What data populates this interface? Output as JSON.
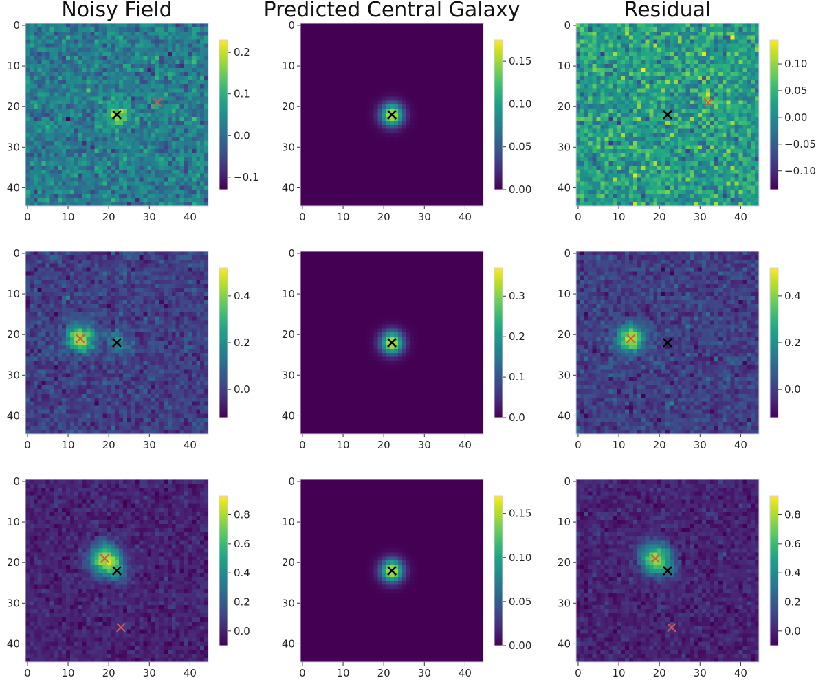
{
  "columns": [
    "Noisy Field",
    "Predicted Central Galaxy",
    "Residual"
  ],
  "colors": {
    "viridis_low": "#440154",
    "viridis_high": "#fde725",
    "marker_central": "#000000",
    "marker_neighbor": "#d9534f"
  },
  "chart_data": [
    {
      "type": "heatmap",
      "row": 0,
      "col": 0,
      "title": "Noisy Field",
      "image_size": 45,
      "x_ticks": [
        "0",
        "10",
        "20",
        "30",
        "40"
      ],
      "y_ticks": [
        "0",
        "10",
        "20",
        "30",
        "40"
      ],
      "vmin": -0.13,
      "vmax": 0.23,
      "cbar_ticks": [
        {
          "v": -0.1,
          "label": "−0.1"
        },
        {
          "v": 0.0,
          "label": "0.0"
        },
        {
          "v": 0.1,
          "label": "0.1"
        },
        {
          "v": 0.2,
          "label": "0.2"
        }
      ],
      "noise_mean": 0.02,
      "noise_sigma": 0.035,
      "sources": [
        {
          "x": 22,
          "y": 22,
          "amp": 0.18,
          "sigma": 1.8
        },
        {
          "x": 32,
          "y": 19,
          "amp": 0.06,
          "sigma": 1.8
        }
      ],
      "markers": [
        {
          "x": 22,
          "y": 22,
          "color": "black"
        },
        {
          "x": 32,
          "y": 19,
          "color": "red"
        }
      ]
    },
    {
      "type": "heatmap",
      "row": 0,
      "col": 1,
      "title": "Predicted Central Galaxy",
      "image_size": 45,
      "x_ticks": [
        "0",
        "10",
        "20",
        "30",
        "40"
      ],
      "y_ticks": [
        "0",
        "10",
        "20",
        "30",
        "40"
      ],
      "vmin": 0.0,
      "vmax": 0.175,
      "cbar_ticks": [
        {
          "v": 0.0,
          "label": "0.00"
        },
        {
          "v": 0.05,
          "label": "0.05"
        },
        {
          "v": 0.1,
          "label": "0.10"
        },
        {
          "v": 0.15,
          "label": "0.15"
        }
      ],
      "noise_mean": 0.0,
      "noise_sigma": 0.0,
      "sources": [
        {
          "x": 22,
          "y": 22,
          "amp": 0.17,
          "sigma": 1.9
        }
      ],
      "markers": [
        {
          "x": 22,
          "y": 22,
          "color": "black"
        }
      ]
    },
    {
      "type": "heatmap",
      "row": 0,
      "col": 2,
      "title": "Residual",
      "image_size": 45,
      "x_ticks": [
        "0",
        "10",
        "20",
        "30",
        "40"
      ],
      "y_ticks": [
        "0",
        "10",
        "20",
        "30",
        "40"
      ],
      "vmin": -0.135,
      "vmax": 0.145,
      "cbar_ticks": [
        {
          "v": -0.1,
          "label": "−0.10"
        },
        {
          "v": -0.05,
          "label": "−0.05"
        },
        {
          "v": 0.0,
          "label": "0.00"
        },
        {
          "v": 0.05,
          "label": "0.05"
        },
        {
          "v": 0.1,
          "label": "0.10"
        }
      ],
      "noise_mean": 0.02,
      "noise_sigma": 0.035,
      "sources": [
        {
          "x": 32,
          "y": 19,
          "amp": 0.06,
          "sigma": 1.6
        }
      ],
      "markers": [
        {
          "x": 22,
          "y": 22,
          "color": "black"
        },
        {
          "x": 32,
          "y": 19,
          "color": "red"
        }
      ]
    },
    {
      "type": "heatmap",
      "row": 1,
      "col": 0,
      "title": "",
      "image_size": 45,
      "x_ticks": [
        "0",
        "10",
        "20",
        "30",
        "40"
      ],
      "y_ticks": [
        "0",
        "10",
        "20",
        "30",
        "40"
      ],
      "vmin": -0.12,
      "vmax": 0.52,
      "cbar_ticks": [
        {
          "v": 0.0,
          "label": "0.0"
        },
        {
          "v": 0.2,
          "label": "0.2"
        },
        {
          "v": 0.4,
          "label": "0.4"
        }
      ],
      "noise_mean": 0.0,
      "noise_sigma": 0.04,
      "sources": [
        {
          "x": 13,
          "y": 21,
          "amp": 0.45,
          "sigma": 2.3
        },
        {
          "x": 22,
          "y": 22,
          "amp": 0.2,
          "sigma": 1.9
        }
      ],
      "markers": [
        {
          "x": 13,
          "y": 21,
          "color": "red"
        },
        {
          "x": 22,
          "y": 22,
          "color": "black"
        }
      ]
    },
    {
      "type": "heatmap",
      "row": 1,
      "col": 1,
      "title": "",
      "image_size": 45,
      "x_ticks": [
        "0",
        "10",
        "20",
        "30",
        "40"
      ],
      "y_ticks": [
        "0",
        "10",
        "20",
        "30",
        "40"
      ],
      "vmin": 0.0,
      "vmax": 0.37,
      "cbar_ticks": [
        {
          "v": 0.0,
          "label": "0.0"
        },
        {
          "v": 0.1,
          "label": "0.1"
        },
        {
          "v": 0.2,
          "label": "0.2"
        },
        {
          "v": 0.3,
          "label": "0.3"
        }
      ],
      "noise_mean": 0.0,
      "noise_sigma": 0.0,
      "sources": [
        {
          "x": 22,
          "y": 22,
          "amp": 0.36,
          "sigma": 1.9
        }
      ],
      "markers": [
        {
          "x": 22,
          "y": 22,
          "color": "black"
        }
      ]
    },
    {
      "type": "heatmap",
      "row": 1,
      "col": 2,
      "title": "",
      "image_size": 45,
      "x_ticks": [
        "0",
        "10",
        "20",
        "30",
        "40"
      ],
      "y_ticks": [
        "0",
        "10",
        "20",
        "30",
        "40"
      ],
      "vmin": -0.12,
      "vmax": 0.52,
      "cbar_ticks": [
        {
          "v": 0.0,
          "label": "0.0"
        },
        {
          "v": 0.2,
          "label": "0.2"
        },
        {
          "v": 0.4,
          "label": "0.4"
        }
      ],
      "noise_mean": 0.0,
      "noise_sigma": 0.04,
      "sources": [
        {
          "x": 13,
          "y": 21,
          "amp": 0.45,
          "sigma": 2.3
        }
      ],
      "markers": [
        {
          "x": 13,
          "y": 21,
          "color": "red"
        },
        {
          "x": 22,
          "y": 22,
          "color": "black"
        }
      ]
    },
    {
      "type": "heatmap",
      "row": 2,
      "col": 0,
      "title": "",
      "image_size": 45,
      "x_ticks": [
        "0",
        "10",
        "20",
        "30",
        "40"
      ],
      "y_ticks": [
        "0",
        "10",
        "20",
        "30",
        "40"
      ],
      "vmin": -0.1,
      "vmax": 0.93,
      "cbar_ticks": [
        {
          "v": 0.0,
          "label": "0.0"
        },
        {
          "v": 0.2,
          "label": "0.2"
        },
        {
          "v": 0.4,
          "label": "0.4"
        },
        {
          "v": 0.6,
          "label": "0.6"
        },
        {
          "v": 0.8,
          "label": "0.8"
        }
      ],
      "noise_mean": 0.0,
      "noise_sigma": 0.045,
      "sources": [
        {
          "x": 19,
          "y": 19,
          "amp": 0.8,
          "sigma": 2.6
        },
        {
          "x": 22,
          "y": 22,
          "amp": 0.3,
          "sigma": 2.0
        },
        {
          "x": 23,
          "y": 36,
          "amp": 0.05,
          "sigma": 1.5
        }
      ],
      "markers": [
        {
          "x": 19,
          "y": 19,
          "color": "red"
        },
        {
          "x": 22,
          "y": 22,
          "color": "black"
        },
        {
          "x": 23,
          "y": 36,
          "color": "red"
        }
      ]
    },
    {
      "type": "heatmap",
      "row": 2,
      "col": 1,
      "title": "",
      "image_size": 45,
      "x_ticks": [
        "0",
        "10",
        "20",
        "30",
        "40"
      ],
      "y_ticks": [
        "0",
        "10",
        "20",
        "30",
        "40"
      ],
      "vmin": 0.0,
      "vmax": 0.17,
      "cbar_ticks": [
        {
          "v": 0.0,
          "label": "0.00"
        },
        {
          "v": 0.05,
          "label": "0.05"
        },
        {
          "v": 0.1,
          "label": "0.10"
        },
        {
          "v": 0.15,
          "label": "0.15"
        }
      ],
      "noise_mean": 0.0,
      "noise_sigma": 0.0,
      "sources": [
        {
          "x": 22,
          "y": 22,
          "amp": 0.165,
          "sigma": 1.9
        }
      ],
      "markers": [
        {
          "x": 22,
          "y": 22,
          "color": "black"
        }
      ]
    },
    {
      "type": "heatmap",
      "row": 2,
      "col": 2,
      "title": "",
      "image_size": 45,
      "x_ticks": [
        "0",
        "10",
        "20",
        "30",
        "40"
      ],
      "y_ticks": [
        "0",
        "10",
        "20",
        "30",
        "40"
      ],
      "vmin": -0.1,
      "vmax": 0.93,
      "cbar_ticks": [
        {
          "v": 0.0,
          "label": "0.0"
        },
        {
          "v": 0.2,
          "label": "0.2"
        },
        {
          "v": 0.4,
          "label": "0.4"
        },
        {
          "v": 0.6,
          "label": "0.6"
        },
        {
          "v": 0.8,
          "label": "0.8"
        }
      ],
      "noise_mean": 0.0,
      "noise_sigma": 0.045,
      "sources": [
        {
          "x": 19,
          "y": 19,
          "amp": 0.78,
          "sigma": 2.6
        },
        {
          "x": 22,
          "y": 22,
          "amp": 0.15,
          "sigma": 1.8
        },
        {
          "x": 23,
          "y": 36,
          "amp": 0.05,
          "sigma": 1.5
        }
      ],
      "markers": [
        {
          "x": 19,
          "y": 19,
          "color": "red"
        },
        {
          "x": 22,
          "y": 22,
          "color": "black"
        },
        {
          "x": 23,
          "y": 36,
          "color": "red"
        }
      ]
    }
  ]
}
